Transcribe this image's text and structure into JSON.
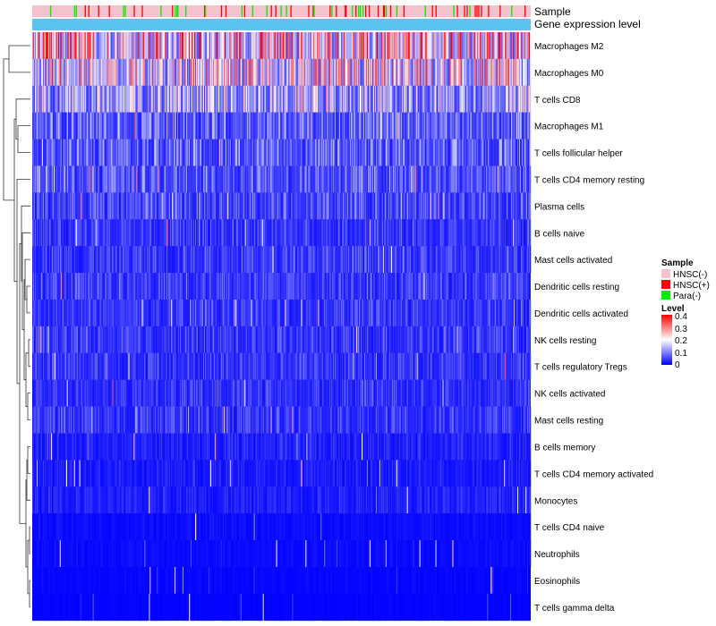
{
  "chart_data": {
    "type": "heatmap",
    "title": "",
    "annotation_tracks": [
      {
        "name": "Sample"
      },
      {
        "name": "Gene expression level"
      }
    ],
    "sample_groups": [
      {
        "label": "HNSC(-)",
        "color": "#f4c2cc"
      },
      {
        "label": "HNSC(+)",
        "color": "#ff0000"
      },
      {
        "label": "Para(-)",
        "color": "#00ee00"
      }
    ],
    "expression_track_color": "#5bc3ee",
    "rows": [
      {
        "label": "Macrophages M2",
        "mean": 0.24
      },
      {
        "label": "Macrophages M0",
        "mean": 0.2
      },
      {
        "label": "T cells CD8",
        "mean": 0.15
      },
      {
        "label": "Macrophages M1",
        "mean": 0.09
      },
      {
        "label": "T cells follicular helper",
        "mean": 0.085
      },
      {
        "label": "T cells CD4 memory resting",
        "mean": 0.08
      },
      {
        "label": "Plasma cells",
        "mean": 0.065
      },
      {
        "label": "B cells naive",
        "mean": 0.05
      },
      {
        "label": "Mast cells activated",
        "mean": 0.055
      },
      {
        "label": "Dendritic cells resting",
        "mean": 0.055
      },
      {
        "label": "Dendritic cells activated",
        "mean": 0.05
      },
      {
        "label": "NK cells resting",
        "mean": 0.05
      },
      {
        "label": "T cells regulatory  Tregs",
        "mean": 0.05
      },
      {
        "label": "NK cells activated",
        "mean": 0.045
      },
      {
        "label": "Mast cells resting",
        "mean": 0.05
      },
      {
        "label": "B cells memory",
        "mean": 0.03
      },
      {
        "label": "T cells CD4 memory activated",
        "mean": 0.025
      },
      {
        "label": "Monocytes",
        "mean": 0.03
      },
      {
        "label": "T cells CD4 naive",
        "mean": 0.012
      },
      {
        "label": "Neutrophils",
        "mean": 0.01
      },
      {
        "label": "Eosinophils",
        "mean": 0.006
      },
      {
        "label": "T cells gamma delta",
        "mean": 0.004
      }
    ],
    "n_columns": 560,
    "color_scale": {
      "min": 0,
      "max": 0.4,
      "low": "#0000ff",
      "mid": "#ffffff",
      "high": "#ff0000"
    },
    "legend": {
      "sample_title": "Sample",
      "level_title": "Level",
      "level_ticks": [
        "0.4",
        "0.3",
        "0.2",
        "0.1",
        "0"
      ],
      "placement": "right"
    }
  }
}
